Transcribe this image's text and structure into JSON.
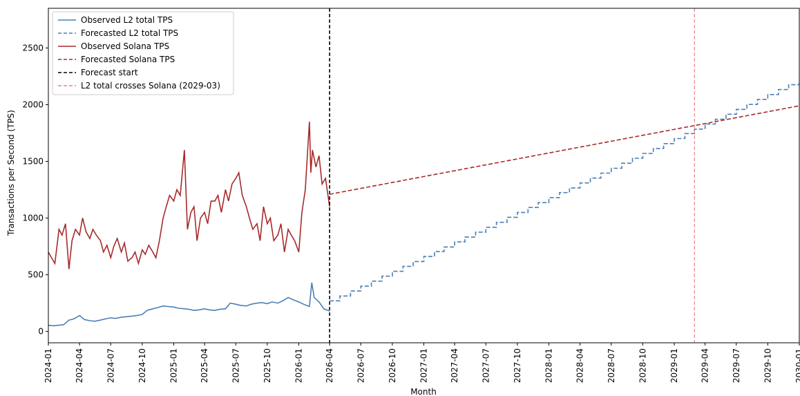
{
  "chart_data": {
    "type": "line",
    "xlabel": "Month",
    "ylabel": "Transactions per Second (TPS)",
    "x_range": [
      "2024-01",
      "2030-01"
    ],
    "ylim": [
      -100,
      2850
    ],
    "yticks": [
      0,
      500,
      1000,
      1500,
      2000,
      2500
    ],
    "xticks": [
      "2024-01",
      "2024-04",
      "2024-07",
      "2024-10",
      "2025-01",
      "2025-04",
      "2025-07",
      "2025-10",
      "2026-01",
      "2026-04",
      "2026-07",
      "2026-10",
      "2027-01",
      "2027-04",
      "2027-07",
      "2027-10",
      "2028-01",
      "2028-04",
      "2028-07",
      "2028-10",
      "2029-01",
      "2029-04",
      "2029-07",
      "2029-10",
      "2030-01"
    ],
    "grid": false,
    "legend_position": "top-left",
    "legend": [
      {
        "label": "Observed L2 total TPS",
        "color": "#4a7fb5",
        "style": "solid"
      },
      {
        "label": "Forecasted L2 total TPS",
        "color": "#4a7fb5",
        "style": "dashed"
      },
      {
        "label": "Observed Solana TPS",
        "color": "#a62a2a",
        "style": "solid"
      },
      {
        "label": "Forecasted Solana TPS",
        "color": "#a62a2a",
        "style": "dashed"
      },
      {
        "label": "Forecast start",
        "color": "#000000",
        "style": "dashed"
      },
      {
        "label": "L2 total crosses Solana (2029-03)",
        "color": "#f08080",
        "style": "dashed"
      }
    ],
    "vlines": [
      {
        "x": "2026-04",
        "color": "#000000"
      },
      {
        "x": "2029-03",
        "color": "#f08080"
      }
    ],
    "series": [
      {
        "name": "Observed L2 total TPS",
        "color": "#4a7fb5",
        "style": "solid",
        "x": [
          "2024-01-01",
          "2024-01-15",
          "2024-02-01",
          "2024-02-15",
          "2024-03-01",
          "2024-03-15",
          "2024-04-01",
          "2024-04-15",
          "2024-05-01",
          "2024-05-15",
          "2024-06-01",
          "2024-06-15",
          "2024-07-01",
          "2024-07-15",
          "2024-08-01",
          "2024-08-15",
          "2024-09-01",
          "2024-09-15",
          "2024-10-01",
          "2024-10-15",
          "2024-11-01",
          "2024-11-15",
          "2024-12-01",
          "2024-12-15",
          "2025-01-01",
          "2025-01-15",
          "2025-02-01",
          "2025-02-15",
          "2025-03-01",
          "2025-03-15",
          "2025-04-01",
          "2025-04-15",
          "2025-05-01",
          "2025-05-15",
          "2025-06-01",
          "2025-06-15",
          "2025-07-01",
          "2025-07-15",
          "2025-08-01",
          "2025-08-15",
          "2025-09-01",
          "2025-09-15",
          "2025-10-01",
          "2025-10-15",
          "2025-11-01",
          "2025-11-15",
          "2025-12-01",
          "2025-12-15",
          "2026-01-01",
          "2026-01-15",
          "2026-02-01",
          "2026-02-08",
          "2026-02-15",
          "2026-03-01",
          "2026-03-15",
          "2026-04-01"
        ],
        "y": [
          55,
          50,
          55,
          60,
          100,
          110,
          140,
          105,
          95,
          90,
          100,
          110,
          120,
          115,
          125,
          130,
          135,
          140,
          150,
          185,
          200,
          210,
          225,
          220,
          215,
          205,
          200,
          195,
          185,
          190,
          200,
          190,
          185,
          195,
          200,
          250,
          240,
          230,
          225,
          240,
          250,
          255,
          245,
          260,
          250,
          270,
          300,
          280,
          260,
          240,
          220,
          430,
          300,
          260,
          200,
          180
        ]
      },
      {
        "name": "Forecasted L2 total TPS",
        "color": "#4a7fb5",
        "style": "dashed",
        "x": [
          "2026-04-01",
          "2030-01-01"
        ],
        "y": [
          270,
          2220
        ]
      },
      {
        "name": "Observed Solana TPS",
        "color": "#a62a2a",
        "style": "solid",
        "x": [
          "2024-01-01",
          "2024-01-10",
          "2024-01-20",
          "2024-02-01",
          "2024-02-10",
          "2024-02-20",
          "2024-03-01",
          "2024-03-10",
          "2024-03-20",
          "2024-04-01",
          "2024-04-10",
          "2024-04-20",
          "2024-05-01",
          "2024-05-10",
          "2024-05-20",
          "2024-06-01",
          "2024-06-10",
          "2024-06-20",
          "2024-07-01",
          "2024-07-10",
          "2024-07-20",
          "2024-08-01",
          "2024-08-10",
          "2024-08-20",
          "2024-09-01",
          "2024-09-10",
          "2024-09-20",
          "2024-10-01",
          "2024-10-10",
          "2024-10-20",
          "2024-11-01",
          "2024-11-10",
          "2024-11-20",
          "2024-12-01",
          "2024-12-10",
          "2024-12-20",
          "2025-01-01",
          "2025-01-10",
          "2025-01-20",
          "2025-02-01",
          "2025-02-10",
          "2025-02-20",
          "2025-03-01",
          "2025-03-10",
          "2025-03-20",
          "2025-04-01",
          "2025-04-10",
          "2025-04-20",
          "2025-05-01",
          "2025-05-10",
          "2025-05-20",
          "2025-06-01",
          "2025-06-10",
          "2025-06-20",
          "2025-07-01",
          "2025-07-10",
          "2025-07-20",
          "2025-08-01",
          "2025-08-10",
          "2025-08-20",
          "2025-09-01",
          "2025-09-10",
          "2025-09-20",
          "2025-10-01",
          "2025-10-10",
          "2025-10-20",
          "2025-11-01",
          "2025-11-10",
          "2025-11-20",
          "2025-12-01",
          "2025-12-10",
          "2025-12-20",
          "2026-01-01",
          "2026-01-10",
          "2026-01-20",
          "2026-02-01",
          "2026-02-05",
          "2026-02-10",
          "2026-02-20",
          "2026-03-01",
          "2026-03-10",
          "2026-03-20",
          "2026-04-01"
        ],
        "y": [
          700,
          650,
          600,
          900,
          850,
          950,
          550,
          800,
          900,
          850,
          1000,
          880,
          820,
          900,
          850,
          800,
          700,
          760,
          650,
          750,
          820,
          700,
          780,
          620,
          650,
          700,
          600,
          720,
          680,
          760,
          700,
          650,
          800,
          1000,
          1100,
          1200,
          1150,
          1250,
          1200,
          1600,
          900,
          1050,
          1100,
          800,
          1000,
          1050,
          950,
          1150,
          1150,
          1200,
          1050,
          1250,
          1150,
          1300,
          1350,
          1400,
          1200,
          1100,
          1000,
          900,
          950,
          800,
          1100,
          950,
          1000,
          800,
          850,
          950,
          700,
          900,
          850,
          800,
          700,
          1050,
          1250,
          1850,
          1400,
          1600,
          1450,
          1550,
          1300,
          1350,
          1100
        ]
      },
      {
        "name": "Forecasted Solana TPS",
        "color": "#a62a2a",
        "style": "dashed",
        "x": [
          "2026-04-01",
          "2030-01-01"
        ],
        "y": [
          1210,
          1990
        ]
      }
    ]
  }
}
